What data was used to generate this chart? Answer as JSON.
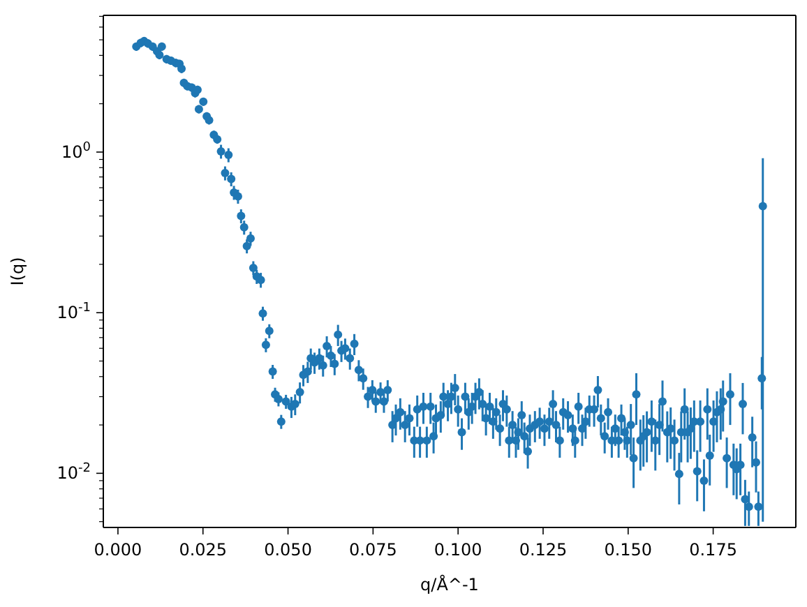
{
  "chart_data": {
    "type": "scatter",
    "xlabel": "q/Å^-1",
    "ylabel": "I(q)",
    "log": "y",
    "marker": "circle",
    "xlim": [
      -0.0043,
      0.1993
    ],
    "ylim": [
      0.0046,
      7.1
    ],
    "xticks": [
      {
        "value": 0,
        "label": "0.000"
      },
      {
        "value": 0.025,
        "label": "0.025"
      },
      {
        "value": 0.05,
        "label": "0.050"
      },
      {
        "value": 0.075,
        "label": "0.075"
      },
      {
        "value": 0.1,
        "label": "0.100"
      },
      {
        "value": 0.125,
        "label": "0.125"
      },
      {
        "value": 0.15,
        "label": "0.150"
      },
      {
        "value": 0.175,
        "label": "0.175"
      }
    ],
    "yticks": [
      {
        "value": 0.005,
        "label": null
      },
      {
        "value": 0.006,
        "label": null
      },
      {
        "value": 0.007,
        "label": null
      },
      {
        "value": 0.008,
        "label": null
      },
      {
        "value": 0.009,
        "label": null
      },
      {
        "value": 0.01,
        "label": "10$^{-2}$"
      },
      {
        "value": 0.02,
        "label": null
      },
      {
        "value": 0.03,
        "label": null
      },
      {
        "value": 0.04,
        "label": null
      },
      {
        "value": 0.05,
        "label": null
      },
      {
        "value": 0.06,
        "label": null
      },
      {
        "value": 0.07,
        "label": null
      },
      {
        "value": 0.08,
        "label": null
      },
      {
        "value": 0.09,
        "label": null
      },
      {
        "value": 0.1,
        "label": "10$^{-1}$"
      },
      {
        "value": 0.2,
        "label": null
      },
      {
        "value": 0.3,
        "label": null
      },
      {
        "value": 0.4,
        "label": null
      },
      {
        "value": 0.5,
        "label": null
      },
      {
        "value": 0.6,
        "label": null
      },
      {
        "value": 0.7,
        "label": null
      },
      {
        "value": 0.8,
        "label": null
      },
      {
        "value": 0.9,
        "label": null
      },
      {
        "value": 1,
        "label": "10$^{0}$"
      },
      {
        "value": 2,
        "label": null
      },
      {
        "value": 3,
        "label": null
      },
      {
        "value": 4,
        "label": null
      },
      {
        "value": 5,
        "label": null
      },
      {
        "value": 6,
        "label": null
      },
      {
        "value": 7,
        "label": null
      }
    ],
    "series": [
      {
        "color": "#1f77b4",
        "x": [
          0.0054,
          0.0067,
          0.0077,
          0.0088,
          0.0102,
          0.0115,
          0.0129,
          0.0122,
          0.0143,
          0.0156,
          0.017,
          0.0181,
          0.0187,
          0.0194,
          0.0204,
          0.0217,
          0.0227,
          0.0234,
          0.0238,
          0.0251,
          0.0261,
          0.0268,
          0.0282,
          0.0292,
          0.0303,
          0.0325,
          0.0315,
          0.0333,
          0.0341,
          0.0353,
          0.0362,
          0.0371,
          0.0379,
          0.039,
          0.0398,
          0.0408,
          0.042,
          0.0426,
          0.0435,
          0.0445,
          0.0455,
          0.0462,
          0.0472,
          0.048,
          0.0494,
          0.051,
          0.0521,
          0.0535,
          0.0545,
          0.0558,
          0.0567,
          0.0578,
          0.0592,
          0.0603,
          0.0614,
          0.0626,
          0.0637,
          0.0647,
          0.0657,
          0.0668,
          0.0682,
          0.0695,
          0.0708,
          0.0721,
          0.0735,
          0.0748,
          0.0758,
          0.0772,
          0.0782,
          0.0793,
          0.0807,
          0.0817,
          0.083,
          0.0844,
          0.0857,
          0.0871,
          0.088,
          0.0888,
          0.0898,
          0.0908,
          0.0919,
          0.0928,
          0.0935,
          0.0949,
          0.0957,
          0.097,
          0.098,
          0.0991,
          0.1,
          0.1011,
          0.1021,
          0.1031,
          0.1041,
          0.1051,
          0.1062,
          0.1072,
          0.1082,
          0.1093,
          0.1103,
          0.1112,
          0.1123,
          0.1132,
          0.1143,
          0.115,
          0.116,
          0.117,
          0.1177,
          0.1187,
          0.1195,
          0.1205,
          0.1211,
          0.1226,
          0.124,
          0.1254,
          0.1268,
          0.1279,
          0.1288,
          0.1299,
          0.1309,
          0.1323,
          0.1337,
          0.1344,
          0.1354,
          0.1365,
          0.1375,
          0.1386,
          0.14,
          0.1411,
          0.142,
          0.1431,
          0.1441,
          0.1452,
          0.1462,
          0.1472,
          0.148,
          0.149,
          0.1497,
          0.1508,
          0.1516,
          0.1524,
          0.1536,
          0.1545,
          0.1555,
          0.1569,
          0.158,
          0.1592,
          0.1601,
          0.1615,
          0.1625,
          0.1636,
          0.165,
          0.1656,
          0.1666,
          0.1675,
          0.1684,
          0.1694,
          0.1703,
          0.1712,
          0.1723,
          0.1733,
          0.174,
          0.1751,
          0.1761,
          0.1772,
          0.1779,
          0.179,
          0.18,
          0.181,
          0.1819,
          0.183,
          0.1837,
          0.1844,
          0.1855,
          0.1865,
          0.1876,
          0.1883,
          0.1893,
          0.1896
        ],
        "values": [
          4.54,
          4.78,
          4.91,
          4.75,
          4.54,
          4.24,
          4.54,
          4.02,
          3.79,
          3.71,
          3.59,
          3.54,
          3.3,
          2.7,
          2.57,
          2.52,
          2.33,
          2.44,
          1.85,
          2.06,
          1.67,
          1.58,
          1.28,
          1.2,
          1.01,
          0.96,
          0.74,
          0.68,
          0.56,
          0.53,
          0.4,
          0.34,
          0.26,
          0.29,
          0.19,
          0.168,
          0.16,
          0.099,
          0.063,
          0.077,
          0.043,
          0.031,
          0.029,
          0.021,
          0.028,
          0.026,
          0.027,
          0.032,
          0.041,
          0.043,
          0.052,
          0.049,
          0.052,
          0.047,
          0.062,
          0.054,
          0.048,
          0.073,
          0.058,
          0.06,
          0.052,
          0.064,
          0.044,
          0.039,
          0.03,
          0.033,
          0.028,
          0.032,
          0.028,
          0.033,
          0.02,
          0.022,
          0.024,
          0.02,
          0.022,
          0.016,
          0.025,
          0.016,
          0.026,
          0.016,
          0.026,
          0.017,
          0.022,
          0.023,
          0.03,
          0.027,
          0.03,
          0.034,
          0.025,
          0.018,
          0.03,
          0.024,
          0.026,
          0.03,
          0.032,
          0.027,
          0.022,
          0.026,
          0.021,
          0.024,
          0.019,
          0.027,
          0.025,
          0.016,
          0.02,
          0.016,
          0.018,
          0.023,
          0.017,
          0.0137,
          0.019,
          0.02,
          0.021,
          0.019,
          0.021,
          0.027,
          0.02,
          0.016,
          0.024,
          0.023,
          0.019,
          0.016,
          0.026,
          0.019,
          0.021,
          0.025,
          0.025,
          0.033,
          0.022,
          0.017,
          0.024,
          0.016,
          0.019,
          0.016,
          0.022,
          0.018,
          0.016,
          0.02,
          0.0124,
          0.031,
          0.016,
          0.017,
          0.018,
          0.021,
          0.016,
          0.02,
          0.028,
          0.018,
          0.019,
          0.016,
          0.0099,
          0.018,
          0.025,
          0.018,
          0.019,
          0.021,
          0.0103,
          0.021,
          0.009,
          0.025,
          0.0129,
          0.021,
          0.024,
          0.025,
          0.028,
          0.0124,
          0.031,
          0.0113,
          0.0106,
          0.0113,
          0.027,
          0.0069,
          0.0062,
          0.0167,
          0.0117,
          0.0062,
          0.039,
          0.46
        ],
        "errors": [
          0.27,
          0.29,
          0.29,
          0.29,
          0.27,
          0.25,
          0.27,
          0.24,
          0.23,
          0.22,
          0.22,
          0.21,
          0.2,
          0.16,
          0.15,
          0.15,
          0.14,
          0.15,
          0.11,
          0.12,
          0.1,
          0.095,
          0.077,
          0.072,
          0.1,
          0.096,
          0.074,
          0.068,
          0.056,
          0.053,
          0.04,
          0.034,
          0.026,
          0.029,
          0.019,
          0.017,
          0.017,
          0.0099,
          0.0063,
          0.0077,
          0.0043,
          0.0031,
          0.0029,
          0.0021,
          0.0028,
          0.0039,
          0.004,
          0.0048,
          0.0062,
          0.0065,
          0.0078,
          0.0074,
          0.0078,
          0.007,
          0.0093,
          0.0081,
          0.0072,
          0.011,
          0.0087,
          0.009,
          0.0078,
          0.0096,
          0.0066,
          0.0059,
          0.0045,
          0.005,
          0.0042,
          0.0048,
          0.0042,
          0.005,
          0.0044,
          0.0048,
          0.0053,
          0.0044,
          0.0048,
          0.0035,
          0.0055,
          0.0035,
          0.0057,
          0.0035,
          0.0057,
          0.0037,
          0.0048,
          0.0051,
          0.0066,
          0.0059,
          0.0066,
          0.0075,
          0.0055,
          0.004,
          0.0066,
          0.0053,
          0.0057,
          0.0066,
          0.007,
          0.0059,
          0.0048,
          0.0057,
          0.0046,
          0.0053,
          0.0042,
          0.0059,
          0.0055,
          0.0035,
          0.0044,
          0.0035,
          0.004,
          0.0051,
          0.0037,
          0.003,
          0.0042,
          0.0044,
          0.0046,
          0.0042,
          0.0046,
          0.0059,
          0.0044,
          0.0035,
          0.0053,
          0.0051,
          0.0042,
          0.0035,
          0.0057,
          0.0042,
          0.0046,
          0.0055,
          0.0055,
          0.0073,
          0.0048,
          0.0037,
          0.0053,
          0.0035,
          0.0042,
          0.0035,
          0.0048,
          0.004,
          0.0035,
          0.007,
          0.0043,
          0.011,
          0.0056,
          0.006,
          0.0063,
          0.0074,
          0.0056,
          0.007,
          0.0098,
          0.0063,
          0.0067,
          0.0056,
          0.0035,
          0.0063,
          0.0088,
          0.0063,
          0.0067,
          0.0074,
          0.0036,
          0.0074,
          0.0032,
          0.0088,
          0.0045,
          0.0074,
          0.0084,
          0.0088,
          0.0098,
          0.0043,
          0.011,
          0.004,
          0.0037,
          0.004,
          0.0095,
          0.0022,
          0.0015,
          0.0058,
          0.0041,
          0.0015,
          0.014,
          0.455
        ]
      }
    ]
  }
}
